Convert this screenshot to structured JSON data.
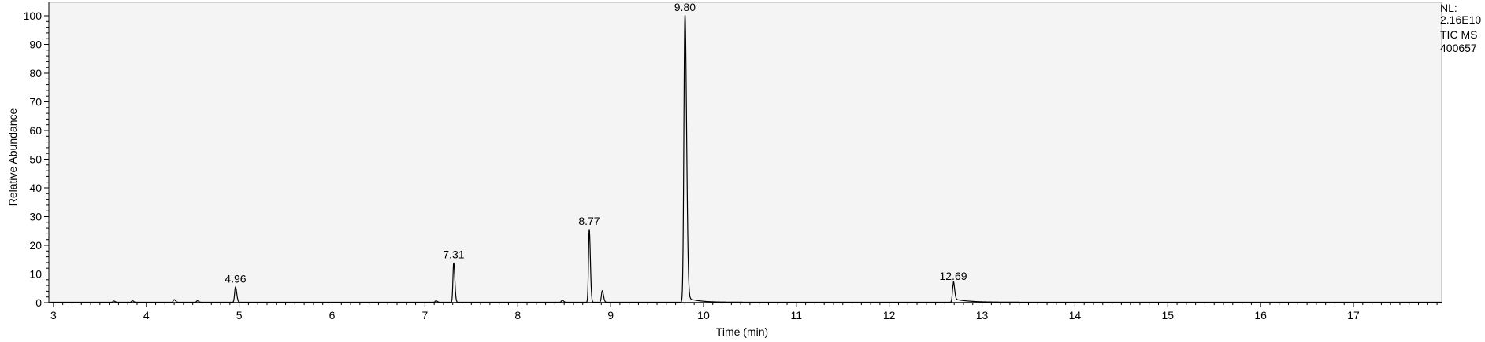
{
  "chart_data": {
    "type": "line",
    "xlabel": "Time (min)",
    "ylabel": "Relative Abundance",
    "xlim": [
      2.95,
      17.95
    ],
    "ylim": [
      0,
      100
    ],
    "x_ticks": [
      3,
      4,
      5,
      6,
      7,
      8,
      9,
      10,
      11,
      12,
      13,
      14,
      15,
      16,
      17
    ],
    "y_ticks": [
      0,
      10,
      20,
      30,
      40,
      50,
      60,
      70,
      80,
      90,
      100
    ],
    "peaks": [
      {
        "rt": 4.96,
        "label": "4.96",
        "height": 5.3
      },
      {
        "rt": 7.31,
        "label": "7.31",
        "height": 13.8
      },
      {
        "rt": 8.77,
        "label": "8.77",
        "height": 25.5
      },
      {
        "rt": 9.8,
        "label": "9.80",
        "height": 100
      },
      {
        "rt": 12.69,
        "label": "12.69",
        "height": 6.3
      }
    ],
    "minor_peaks": [
      {
        "rt": 3.65,
        "height": 0.4
      },
      {
        "rt": 3.85,
        "height": 0.5
      },
      {
        "rt": 4.3,
        "height": 0.9
      },
      {
        "rt": 4.55,
        "height": 0.5
      },
      {
        "rt": 7.12,
        "height": 0.5
      },
      {
        "rt": 8.48,
        "height": 0.7
      },
      {
        "rt": 8.91,
        "height": 4.0
      }
    ],
    "info": {
      "nl_label": "NL:",
      "nl_value": "2.16E10",
      "scan_filter": "TIC  MS",
      "sample": "400657"
    }
  },
  "colors": {
    "plot_background": "#f4f4f4",
    "trace": "#000000",
    "axis": "#000000"
  }
}
